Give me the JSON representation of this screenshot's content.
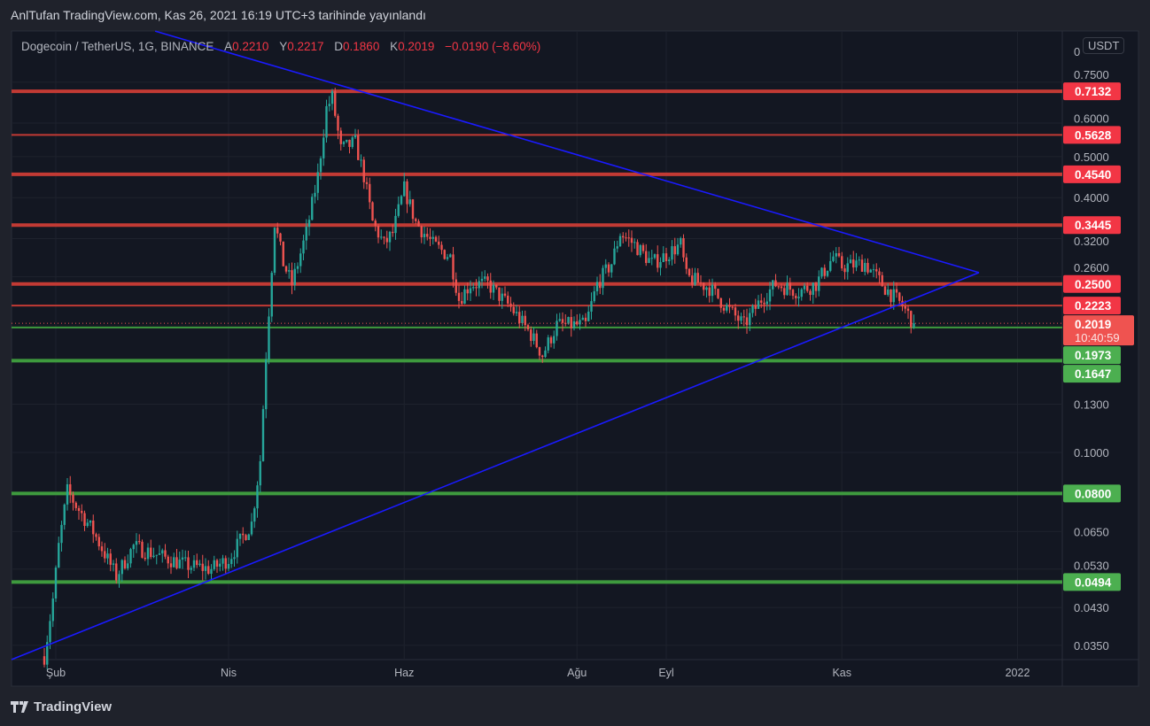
{
  "header": {
    "published": "AnlTufan TradingView.com, Kas 26, 2021 16:19 UTC+3 tarihinde yayınlandı"
  },
  "legend": {
    "symbol": "Dogecoin / TetherUS, 1G, BINANCE",
    "open_label": "A",
    "open": "0.2210",
    "high_label": "Y",
    "high": "0.2217",
    "low_label": "D",
    "low": "0.1860",
    "close_label": "K",
    "close": "0.2019",
    "change": "−0.0190 (−8.60%)"
  },
  "currency": "USDT",
  "footer": {
    "brand": "TradingView"
  },
  "colors": {
    "up": "#26a69a",
    "down": "#ef5350",
    "resistance": "#f23645",
    "support": "#4caf50",
    "trend": "#1a1aff",
    "bg": "#131722"
  },
  "chart_data": {
    "type": "candlestick",
    "scale": "log",
    "ylim": [
      0.0324,
      1.0
    ],
    "x_unit": "days since 2021-01-28",
    "x_ticks": [
      {
        "label": "Şub",
        "day": 4
      },
      {
        "label": "Nis",
        "day": 64
      },
      {
        "label": "Haz",
        "day": 125
      },
      {
        "label": "Ağu",
        "day": 185
      },
      {
        "label": "Eyl",
        "day": 216
      },
      {
        "label": "Kas",
        "day": 277
      },
      {
        "label": "2022",
        "day": 338
      }
    ],
    "y_ticks": [
      "0",
      "0.7500",
      "0.6000",
      "0.5000",
      "0.4000",
      "0.3200",
      "0.2600",
      "0.1300",
      "0.1000",
      "0.0650",
      "0.0530",
      "0.0430",
      "0.0350"
    ],
    "y_tick_values": [
      1.0,
      0.75,
      0.6,
      0.5,
      0.4,
      0.32,
      0.26,
      0.13,
      0.1,
      0.065,
      0.053,
      0.043,
      0.035
    ],
    "price_path": [
      [
        0,
        0.033
      ],
      [
        3,
        0.045
      ],
      [
        5,
        0.06
      ],
      [
        8,
        0.081
      ],
      [
        11,
        0.075
      ],
      [
        17,
        0.065
      ],
      [
        25,
        0.051
      ],
      [
        31,
        0.06
      ],
      [
        40,
        0.057
      ],
      [
        50,
        0.054
      ],
      [
        58,
        0.053
      ],
      [
        64,
        0.056
      ],
      [
        72,
        0.068
      ],
      [
        75,
        0.096
      ],
      [
        77,
        0.17
      ],
      [
        80,
        0.35
      ],
      [
        83,
        0.28
      ],
      [
        86,
        0.25
      ],
      [
        91,
        0.33
      ],
      [
        95,
        0.45
      ],
      [
        98,
        0.65
      ],
      [
        100,
        0.69
      ],
      [
        103,
        0.52
      ],
      [
        108,
        0.54
      ],
      [
        111,
        0.45
      ],
      [
        114,
        0.35
      ],
      [
        118,
        0.31
      ],
      [
        121,
        0.33
      ],
      [
        125,
        0.42
      ],
      [
        129,
        0.35
      ],
      [
        135,
        0.31
      ],
      [
        141,
        0.29
      ],
      [
        144,
        0.23
      ],
      [
        148,
        0.25
      ],
      [
        154,
        0.25
      ],
      [
        162,
        0.22
      ],
      [
        169,
        0.19
      ],
      [
        173,
        0.17
      ],
      [
        178,
        0.2
      ],
      [
        188,
        0.2
      ],
      [
        192,
        0.25
      ],
      [
        197,
        0.28
      ],
      [
        200,
        0.33
      ],
      [
        205,
        0.31
      ],
      [
        211,
        0.28
      ],
      [
        215,
        0.29
      ],
      [
        221,
        0.31
      ],
      [
        223,
        0.26
      ],
      [
        231,
        0.245
      ],
      [
        237,
        0.22
      ],
      [
        243,
        0.2
      ],
      [
        249,
        0.23
      ],
      [
        254,
        0.25
      ],
      [
        262,
        0.24
      ],
      [
        268,
        0.25
      ],
      [
        274,
        0.29
      ],
      [
        277,
        0.275
      ],
      [
        285,
        0.28
      ],
      [
        292,
        0.245
      ],
      [
        298,
        0.222
      ],
      [
        302,
        0.2019
      ]
    ],
    "levels": [
      {
        "price": 0.7132,
        "label": "0.7132",
        "type": "resistance",
        "thick": true
      },
      {
        "price": 0.5628,
        "label": "0.5628",
        "type": "resistance",
        "thick": false
      },
      {
        "price": 0.454,
        "label": "0.4540",
        "type": "resistance",
        "thick": true
      },
      {
        "price": 0.3445,
        "label": "0.3445",
        "type": "resistance",
        "thick": true
      },
      {
        "price": 0.25,
        "label": "0.2500",
        "type": "resistance",
        "thick": true
      },
      {
        "price": 0.2223,
        "label": "0.2223",
        "type": "resistance",
        "thick": false
      },
      {
        "price": 0.1973,
        "label": "0.1973",
        "type": "support",
        "thick": false
      },
      {
        "price": 0.1647,
        "label": "0.1647",
        "type": "support",
        "thick": true
      },
      {
        "price": 0.08,
        "label": "0.0800",
        "type": "support",
        "thick": true
      },
      {
        "price": 0.0494,
        "label": "0.0494",
        "type": "support",
        "thick": true
      }
    ],
    "last_price": {
      "price": 0.2019,
      "label": "0.2019",
      "countdown": "10:40:59"
    },
    "trendlines": [
      {
        "name": "upper",
        "from": [
          38.5,
          0.99
        ],
        "to": [
          324.6,
          0.266
        ]
      },
      {
        "name": "lower",
        "from": [
          -11.4,
          0.0324
        ],
        "to": [
          324.6,
          0.266
        ]
      }
    ]
  }
}
